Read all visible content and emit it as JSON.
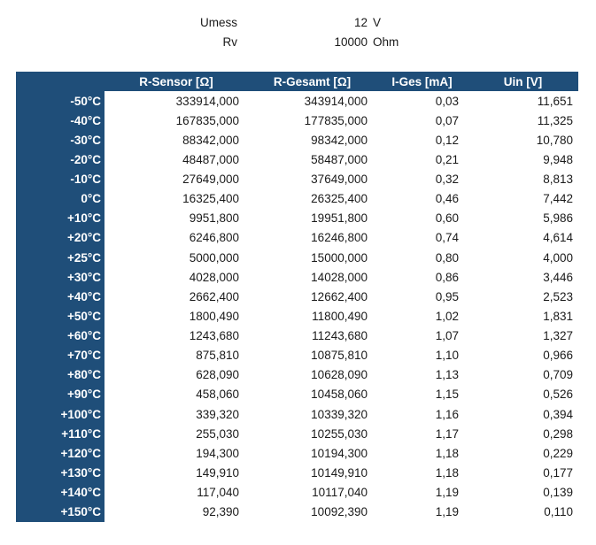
{
  "colors": {
    "header_bg": "#1F4E79",
    "header_text": "#FFFFFF",
    "cell_text": "#1A1A1A"
  },
  "chart_data": {
    "type": "table",
    "title": "",
    "parameters": [
      {
        "label": "Umess",
        "value": "12",
        "unit": "V"
      },
      {
        "label": "Rv",
        "value": "10000",
        "unit": "Ohm"
      }
    ],
    "columns": [
      "",
      "R-Sensor [Ω]",
      "R-Gesamt [Ω]",
      "I-Ges [mA]",
      "Uin [V]"
    ],
    "rows": [
      {
        "temp": "-50°C",
        "r_sensor": "333914,000",
        "r_gesamt": "343914,000",
        "i_ges": "0,03",
        "uin": "11,651"
      },
      {
        "temp": "-40°C",
        "r_sensor": "167835,000",
        "r_gesamt": "177835,000",
        "i_ges": "0,07",
        "uin": "11,325"
      },
      {
        "temp": "-30°C",
        "r_sensor": "88342,000",
        "r_gesamt": "98342,000",
        "i_ges": "0,12",
        "uin": "10,780"
      },
      {
        "temp": "-20°C",
        "r_sensor": "48487,000",
        "r_gesamt": "58487,000",
        "i_ges": "0,21",
        "uin": "9,948"
      },
      {
        "temp": "-10°C",
        "r_sensor": "27649,000",
        "r_gesamt": "37649,000",
        "i_ges": "0,32",
        "uin": "8,813"
      },
      {
        "temp": "0°C",
        "r_sensor": "16325,400",
        "r_gesamt": "26325,400",
        "i_ges": "0,46",
        "uin": "7,442"
      },
      {
        "temp": "+10°C",
        "r_sensor": "9951,800",
        "r_gesamt": "19951,800",
        "i_ges": "0,60",
        "uin": "5,986"
      },
      {
        "temp": "+20°C",
        "r_sensor": "6246,800",
        "r_gesamt": "16246,800",
        "i_ges": "0,74",
        "uin": "4,614"
      },
      {
        "temp": "+25°C",
        "r_sensor": "5000,000",
        "r_gesamt": "15000,000",
        "i_ges": "0,80",
        "uin": "4,000"
      },
      {
        "temp": "+30°C",
        "r_sensor": "4028,000",
        "r_gesamt": "14028,000",
        "i_ges": "0,86",
        "uin": "3,446"
      },
      {
        "temp": "+40°C",
        "r_sensor": "2662,400",
        "r_gesamt": "12662,400",
        "i_ges": "0,95",
        "uin": "2,523"
      },
      {
        "temp": "+50°C",
        "r_sensor": "1800,490",
        "r_gesamt": "11800,490",
        "i_ges": "1,02",
        "uin": "1,831"
      },
      {
        "temp": "+60°C",
        "r_sensor": "1243,680",
        "r_gesamt": "11243,680",
        "i_ges": "1,07",
        "uin": "1,327"
      },
      {
        "temp": "+70°C",
        "r_sensor": "875,810",
        "r_gesamt": "10875,810",
        "i_ges": "1,10",
        "uin": "0,966"
      },
      {
        "temp": "+80°C",
        "r_sensor": "628,090",
        "r_gesamt": "10628,090",
        "i_ges": "1,13",
        "uin": "0,709"
      },
      {
        "temp": "+90°C",
        "r_sensor": "458,060",
        "r_gesamt": "10458,060",
        "i_ges": "1,15",
        "uin": "0,526"
      },
      {
        "temp": "+100°C",
        "r_sensor": "339,320",
        "r_gesamt": "10339,320",
        "i_ges": "1,16",
        "uin": "0,394"
      },
      {
        "temp": "+110°C",
        "r_sensor": "255,030",
        "r_gesamt": "10255,030",
        "i_ges": "1,17",
        "uin": "0,298"
      },
      {
        "temp": "+120°C",
        "r_sensor": "194,300",
        "r_gesamt": "10194,300",
        "i_ges": "1,18",
        "uin": "0,229"
      },
      {
        "temp": "+130°C",
        "r_sensor": "149,910",
        "r_gesamt": "10149,910",
        "i_ges": "1,18",
        "uin": "0,177"
      },
      {
        "temp": "+140°C",
        "r_sensor": "117,040",
        "r_gesamt": "10117,040",
        "i_ges": "1,19",
        "uin": "0,139"
      },
      {
        "temp": "+150°C",
        "r_sensor": "92,390",
        "r_gesamt": "10092,390",
        "i_ges": "1,19",
        "uin": "0,110"
      }
    ]
  }
}
